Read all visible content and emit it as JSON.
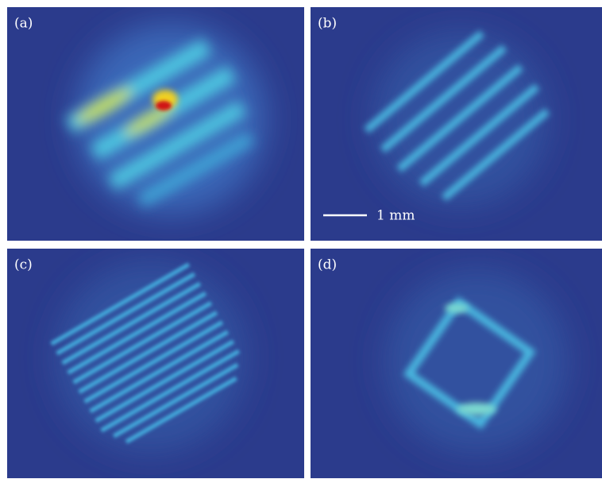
{
  "panels": [
    {
      "label": "(a)"
    },
    {
      "label": "(b)"
    },
    {
      "label": "(c)"
    },
    {
      "label": "(d)"
    }
  ],
  "scale_bar": {
    "label": "1 mm"
  }
}
